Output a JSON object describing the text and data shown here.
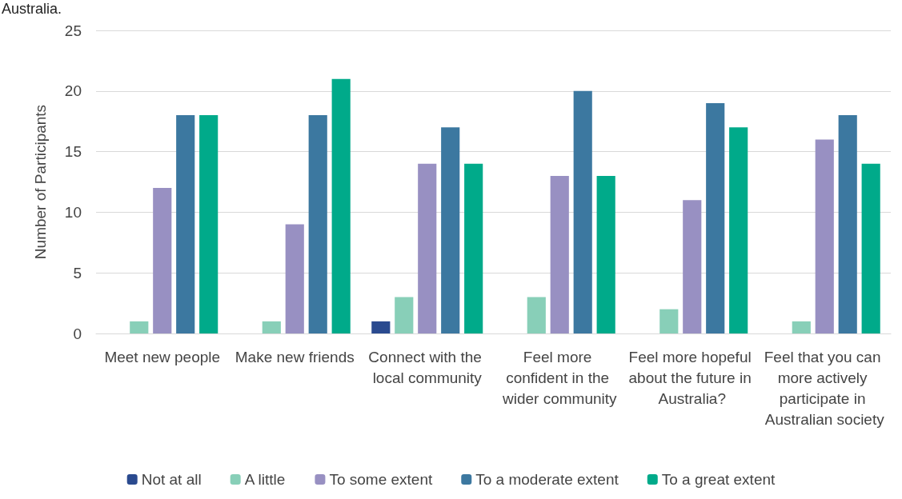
{
  "chart_data": {
    "type": "bar",
    "ylabel": "Number of Participants",
    "annotations": [
      "Australia."
    ],
    "categories": [
      "Meet new people",
      "Make new friends",
      "Connect with the local community",
      "Feel more confident in the wider community",
      "Feel more hopeful about the future in Australia?",
      "Feel that you can more actively participate in Australian society"
    ],
    "series": [
      {
        "name": "Not at all",
        "color": "#2a4a8f",
        "values": [
          0,
          0,
          1,
          0,
          0,
          0
        ]
      },
      {
        "name": "A little",
        "color": "#88cfb8",
        "values": [
          1,
          1,
          3,
          3,
          2,
          1
        ]
      },
      {
        "name": "To some extent",
        "color": "#9890c2",
        "values": [
          12,
          9,
          14,
          13,
          11,
          16
        ]
      },
      {
        "name": "To a moderate extent",
        "color": "#3c78a0",
        "values": [
          18,
          18,
          17,
          20,
          19,
          18
        ]
      },
      {
        "name": "To a great extent",
        "color": "#00aa8a",
        "values": [
          18,
          21,
          14,
          13,
          17,
          14
        ]
      }
    ],
    "ylim": [
      0,
      25
    ],
    "yticks": [
      0,
      5,
      10,
      15,
      20,
      25
    ],
    "grid": "y",
    "legend": "bottom"
  }
}
